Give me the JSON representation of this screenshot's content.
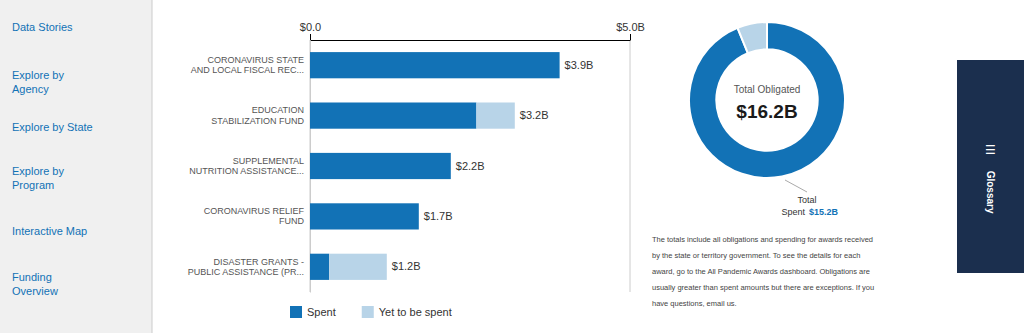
{
  "navigation": [
    "Data Stories",
    "Explore by\nAgency",
    "Explore by State",
    "Explore by\nProgram",
    "Interactive Map",
    "Funding\nOverview"
  ],
  "tabs": [
    {
      "icon": "☰",
      "label": "Glossary"
    }
  ],
  "chart_data": [
    {
      "type": "bar",
      "orientation": "horizontal",
      "stacked": true,
      "categories": [
        "CORONAVIRUS STATE\nAND LOCAL FISCAL REC...",
        "EDUCATION\nSTABILIZATION FUND",
        "SUPPLEMENTAL\nNUTRITION ASSISTANCE...",
        "CORONAVIRUS RELIEF\nFUND",
        "DISASTER GRANTS -\nPUBLIC ASSISTANCE (PR..."
      ],
      "series": [
        {
          "name": "Spent",
          "color": "#1272b6",
          "values": [
            3.9,
            2.6,
            2.2,
            1.7,
            0.3
          ]
        },
        {
          "name": "Yet to be spent",
          "color": "#b8d4e8",
          "values": [
            0,
            0.6,
            0,
            0,
            0.9
          ]
        }
      ],
      "totals": [
        3.9,
        3.2,
        2.2,
        1.7,
        1.2
      ],
      "total_labels": [
        "$3.9B",
        "$3.2B",
        "$2.2B",
        "$1.7B",
        "$1.2B"
      ],
      "xlim": [
        0,
        5.0
      ],
      "xticks": [
        {
          "value": 0,
          "label": "$0.0"
        },
        {
          "value": 5.0,
          "label": "$5.0B"
        }
      ],
      "grid": true,
      "legend": "bottom"
    },
    {
      "type": "pie",
      "values": [
        15.2,
        1.0
      ],
      "colors": [
        "#1272b6",
        "#b8d4e8"
      ],
      "annotations": [
        "Total Obligated",
        "$16.2B",
        "Total",
        "Spent",
        "$15.2B",
        "The totals include all obligations and spending for awards received",
        "by the state or territory government. To see the details for each",
        "award, go to the All Pandemic Awards dashboard. Obligations are",
        "usually greater than spent amounts but there are exceptions. If you",
        "have questions, email us."
      ]
    }
  ]
}
